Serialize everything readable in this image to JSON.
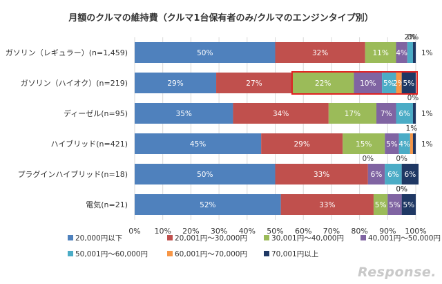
{
  "chart_data": {
    "type": "bar",
    "orientation": "horizontal",
    "stacked": "percent",
    "title": "月額のクルマの維持費（クルマ1台保有者のみ/クルマのエンジンタイプ別）",
    "categories": [
      "ガソリン（レギュラー）(n=1,459)",
      "ガソリン（ハイオク）(n=219)",
      "ディーゼル(n=95)",
      "ハイブリッド(n=421)",
      "プラグインハイブリッド(n=18)",
      "電気(n=21)"
    ],
    "series": [
      {
        "name": "20,000円以下",
        "color": "#4f81bd",
        "values": [
          50,
          29,
          35,
          45,
          50,
          52
        ]
      },
      {
        "name": "20,001円～30,000円",
        "color": "#c0504d",
        "values": [
          32,
          27,
          34,
          29,
          33,
          33
        ]
      },
      {
        "name": "30,001円～40,000円",
        "color": "#9bbb59",
        "values": [
          11,
          22,
          17,
          15,
          0,
          5
        ]
      },
      {
        "name": "40,001円～50,000円",
        "color": "#8064a2",
        "values": [
          4,
          10,
          7,
          5,
          6,
          5
        ]
      },
      {
        "name": "50,001円～60,000円",
        "color": "#4bacc6",
        "values": [
          2,
          5,
          6,
          4,
          6,
          0
        ]
      },
      {
        "name": "60,001円～70,000円",
        "color": "#f79646",
        "values": [
          0,
          2,
          0,
          1,
          0,
          0
        ]
      },
      {
        "name": "70,001円以上",
        "color": "#1f3864",
        "values": [
          1,
          5,
          1,
          1,
          6,
          5
        ]
      }
    ],
    "xlim": [
      0,
      100
    ],
    "x_tick_labels": [
      "0%",
      "10%",
      "20%",
      "30%",
      "40%",
      "50%",
      "60%",
      "70%",
      "80%",
      "90%",
      "100%"
    ],
    "data_labels": [
      [
        "50%",
        "32%",
        "11%",
        "4%",
        "",
        "",
        ""
      ],
      [
        "29%",
        "27%",
        "22%",
        "10%",
        "5%",
        "2%",
        "5%"
      ],
      [
        "35%",
        "34%",
        "17%",
        "7%",
        "6%",
        "",
        ""
      ],
      [
        "45%",
        "29%",
        "15%",
        "5%",
        "4%",
        "",
        ""
      ],
      [
        "50%",
        "33%",
        "",
        "6%",
        "6%",
        "",
        "6%"
      ],
      [
        "52%",
        "33%",
        "5%",
        "5%",
        "",
        "",
        "5%"
      ]
    ],
    "outside_labels": [
      [
        {
          "series": 4,
          "text": "2%",
          "pos": "above"
        },
        {
          "series": 5,
          "text": "0%",
          "pos": "above"
        },
        {
          "series": 6,
          "text": "1%",
          "pos": "right"
        }
      ],
      [],
      [
        {
          "series": 5,
          "text": "0%",
          "pos": "above"
        },
        {
          "series": 6,
          "text": "1%",
          "pos": "right"
        }
      ],
      [
        {
          "series": 5,
          "text": "1%",
          "pos": "above"
        },
        {
          "series": 6,
          "text": "1%",
          "pos": "right"
        }
      ],
      [
        {
          "series": 2,
          "text": "0%",
          "pos": "above"
        },
        {
          "series": 5,
          "text": "0%",
          "pos": "above"
        }
      ],
      [
        {
          "series": 4,
          "text": "0%",
          "pos": "above"
        },
        {
          "series": 5,
          "text": "0%",
          "pos": "above"
        }
      ]
    ],
    "highlight": {
      "category": 1,
      "from_series": 2,
      "color": "#e02020"
    },
    "grid": true,
    "legend_position": "bottom"
  },
  "watermark": "Response."
}
